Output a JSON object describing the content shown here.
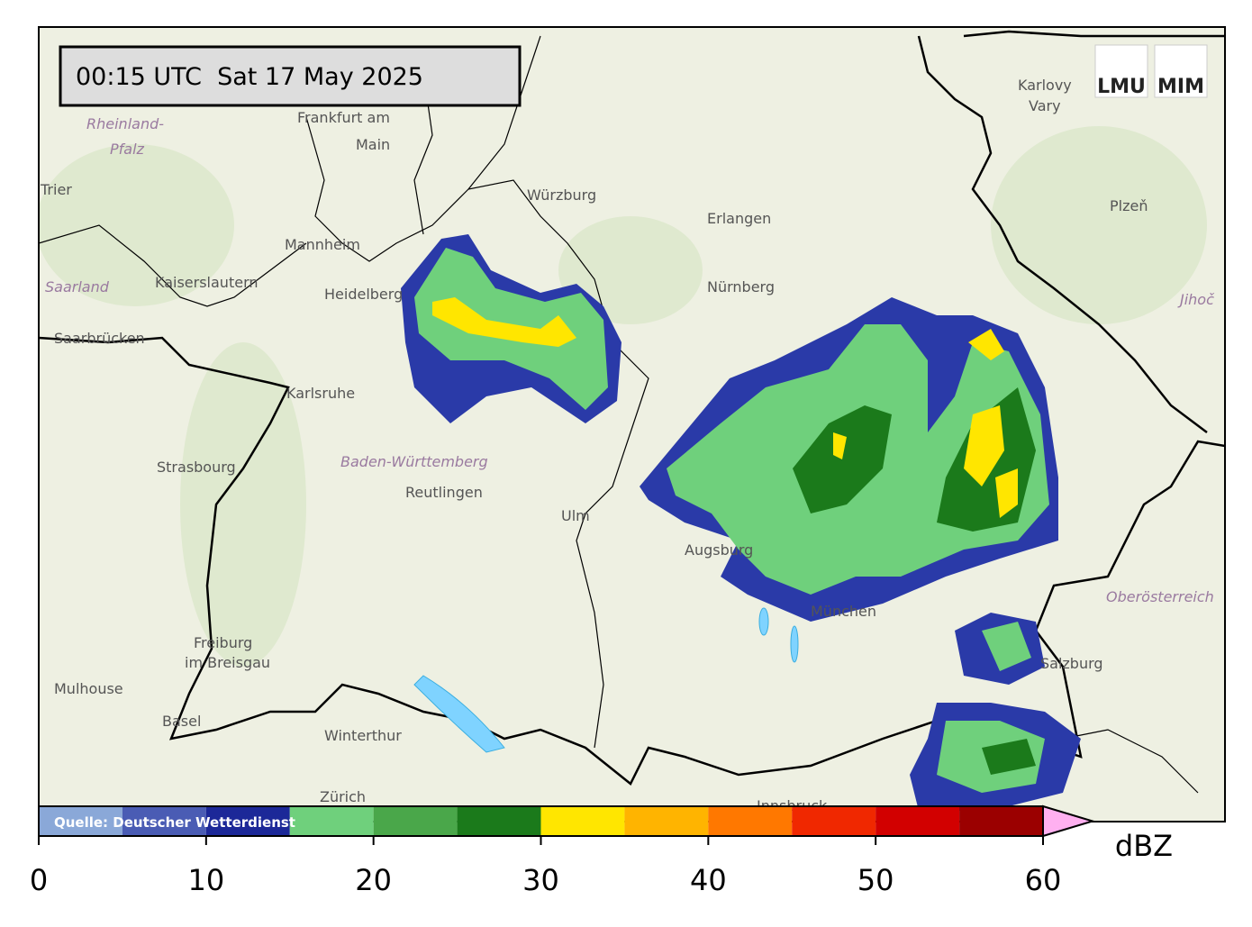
{
  "timestamp": "00:15 UTC  Sat 17 May 2025",
  "logos": [
    "LMU",
    "MIM"
  ],
  "source": "Quelle: Deutscher Wetterdienst",
  "map_labels": [
    "Frankfurt am",
    "Main",
    "Rheinland-",
    "Pfalz",
    "Trier",
    "Würzburg",
    "Erlangen",
    "Nürnberg",
    "Karlovy",
    "Vary",
    "Plzeň",
    "Mannheim",
    "Heidelberg",
    "Kaiserslautern",
    "Saarland",
    "Saarbrücken",
    "Karlsruhe",
    "Strasbourg",
    "Baden-Württemberg",
    "Reutlingen",
    "Ulm",
    "Augsburg",
    "München",
    "Oberösterreich",
    "Jihoč",
    "Freiburg",
    "im Breisgau",
    "Mulhouse",
    "Basel",
    "Winterthur",
    "Zürich",
    "Salzburg",
    "Innsbruck"
  ],
  "colorbar": {
    "bounds": [
      0,
      5,
      10,
      15,
      20,
      25,
      30,
      35,
      40,
      45,
      50,
      55,
      60
    ],
    "colors": [
      "#8aa8d8",
      "#4a5cb4",
      "#1c2898",
      "#6fd07c",
      "#4aa74a",
      "#1b7a1b",
      "#ffe600",
      "#ffb400",
      "#ff7800",
      "#f02800",
      "#d20000",
      "#9b0000"
    ],
    "extend_color": "#ffb0f0",
    "ticks": [
      0,
      10,
      20,
      30,
      40,
      50,
      60
    ],
    "unit": "dBZ"
  }
}
